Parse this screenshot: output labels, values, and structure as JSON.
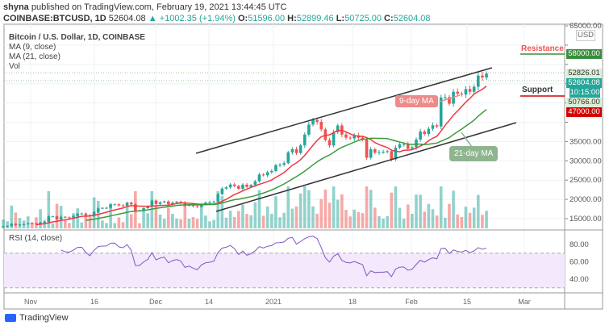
{
  "header": {
    "line1_user": "shyna",
    "line1_rest": "published on TradingView.com, February 19, 2021 13:44:45 UTC",
    "symbol": "COINBASE:BTCUSD, 1D",
    "last": "52604.08",
    "change": "+1002.35 (+1.94%)",
    "o_label": "O:",
    "o": "51596.00",
    "h_label": "H:",
    "h": "52899.46",
    "l_label": "L:",
    "l": "50725.00",
    "c_label": "C:",
    "c": "52604.08"
  },
  "legend": {
    "title": "Bitcoin / U.S. Dollar, 1D, COINBASE",
    "ma9": "MA (9, close)",
    "ma21": "MA (21, close)",
    "vol": "Vol",
    "rsi": "RSI (14, close)"
  },
  "annotations": {
    "ma9": "9-day MA",
    "ma21": "21-day MA",
    "resistance": "Resistance",
    "support": "Support"
  },
  "price_labels": {
    "resistance": "58000.00",
    "high_line": "52826.01",
    "last": "52604.08",
    "countdown": "10:15:00",
    "low_line": "50766.00",
    "support": "47000.00",
    "currency": "USD"
  },
  "footer": {
    "brand": "TradingView"
  },
  "colors": {
    "up": "#26a69a",
    "down": "#ef5350",
    "ma9": "#f23645",
    "ma21": "#3e9a3a",
    "rsi": "#7e57c2",
    "resistance": "#388e3c",
    "support": "#d50000"
  },
  "chart_data": {
    "type": "candlestick",
    "start_date": "2020-10-25",
    "interval": "1D",
    "closes": [
      13000,
      13070,
      13650,
      13280,
      13460,
      13560,
      13800,
      13760,
      13550,
      14030,
      14150,
      15590,
      15590,
      14830,
      15480,
      15330,
      15310,
      15700,
      16290,
      16330,
      15960,
      15710,
      16730,
      17670,
      17800,
      17820,
      18690,
      18710,
      18430,
      18370,
      19160,
      18720,
      17150,
      17140,
      17730,
      18180,
      19700,
      18800,
      19220,
      19450,
      18700,
      19150,
      19380,
      19180,
      18330,
      18550,
      18250,
      18040,
      18800,
      19170,
      19270,
      19440,
      21350,
      22800,
      23130,
      23860,
      23480,
      22750,
      23820,
      23250,
      23720,
      24690,
      26440,
      26250,
      27040,
      27360,
      28880,
      28980,
      29400,
      32200,
      33000,
      32000,
      34000,
      36800,
      39400,
      40600,
      40100,
      38150,
      35400,
      34000,
      37400,
      39150,
      36800,
      36000,
      35800,
      36600,
      36000,
      35500,
      30800,
      33000,
      32100,
      32300,
      32300,
      32500,
      30400,
      33400,
      34300,
      34300,
      33100,
      33500,
      35500,
      37600,
      36950,
      38300,
      39200,
      38900,
      46400,
      46500,
      44800,
      47900,
      47400,
      47200,
      48600,
      47900,
      49200,
      52100,
      51600,
      52604.08
    ],
    "price_axis": {
      "ticks": [
        15000,
        20000,
        25000,
        30000,
        35000,
        40000,
        45000,
        50000,
        55000,
        60000,
        65000
      ],
      "range": [
        13000,
        65500
      ]
    },
    "rsi_axis": {
      "ticks": [
        40,
        60,
        80
      ],
      "band": [
        30,
        70
      ]
    },
    "x_ticks": [
      "Nov",
      "16",
      "Dec",
      "14",
      "2021",
      "18",
      "Feb",
      "15",
      "Mar"
    ],
    "indicators": [
      "MA 9",
      "MA 21",
      "Volume",
      "RSI 14"
    ],
    "channel": "ascending"
  }
}
